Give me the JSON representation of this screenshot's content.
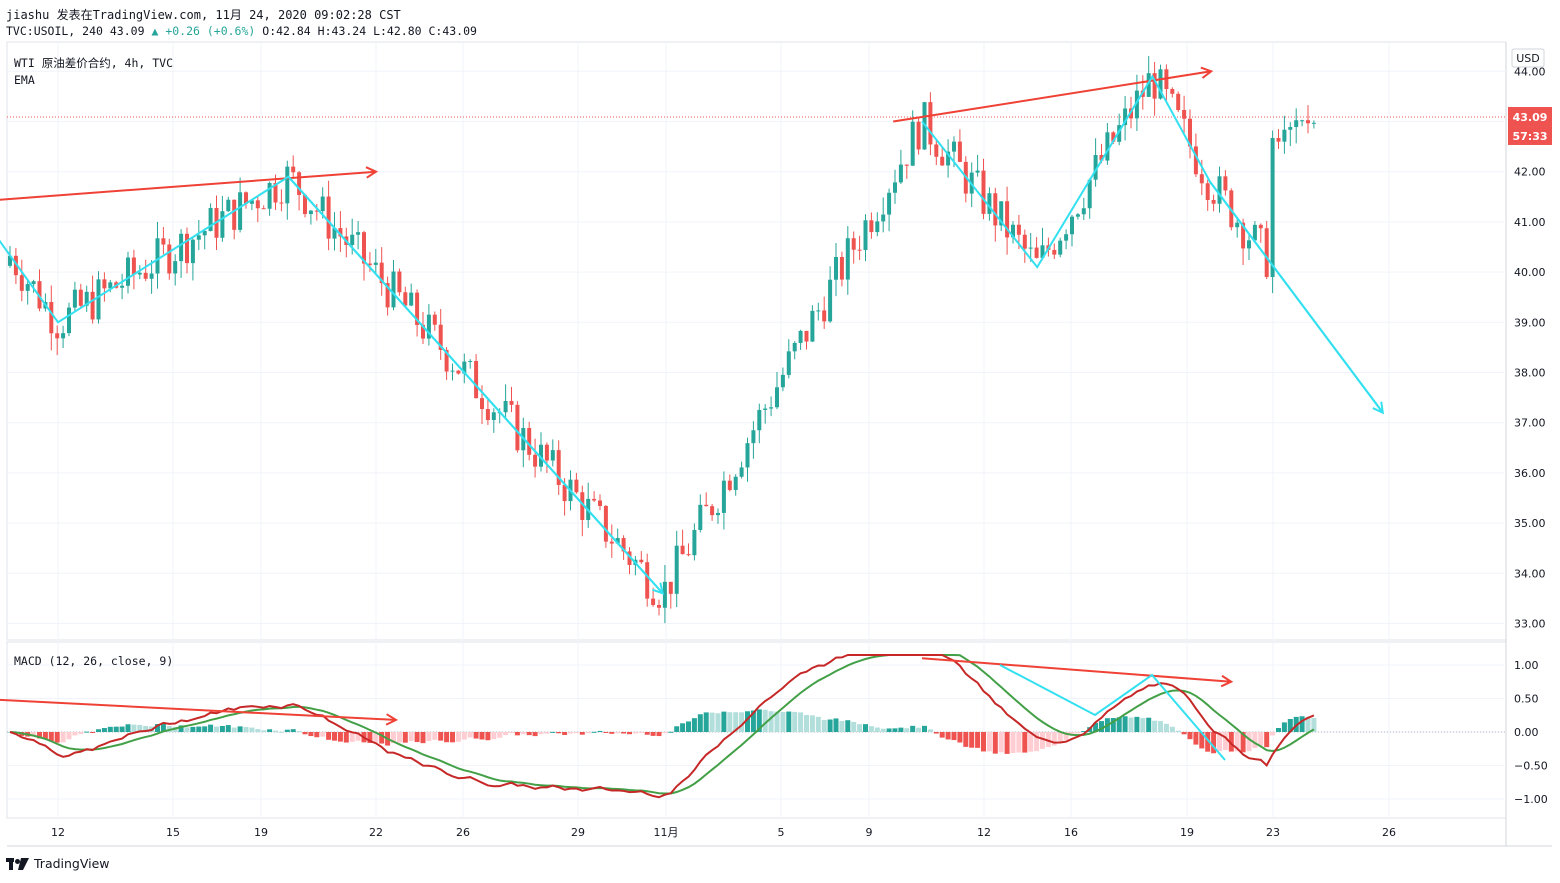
{
  "header": {
    "publisher": "jiashu 发表在TradingView.com, 11月 24, 2020 09:02:28 CST",
    "symbol": "TVC:USOIL, 240",
    "last": "43.09",
    "change_arrow": "▲",
    "change": "+0.26 (+0.6%)",
    "ohlc_o": "O:42.84",
    "ohlc_h": "H:43.24",
    "ohlc_l": "L:42.80",
    "ohlc_c": "C:43.09"
  },
  "legend": {
    "title": "WTI 原油差价合约, 4h, TVC",
    "ema": "EMA",
    "macd": "MACD (12, 26, close, 9)"
  },
  "footer": {
    "brand": "TradingView",
    "logo_icon": "tradingview-logo-icon"
  },
  "colors": {
    "up": "#26a69a",
    "down": "#ef5350",
    "annotation_red": "#ef4135",
    "annotation_cyan": "#33e0f0",
    "macd_line": "#c62828",
    "signal_line": "#43a047"
  },
  "chart_data": [
    {
      "type": "candlestick",
      "currency_badge": "USD",
      "last_price": "43.09",
      "countdown": "57:33",
      "ylim": [
        32.8,
        44.3
      ],
      "y_ticks": [
        "44.00",
        "43.00",
        "42.00",
        "41.00",
        "40.00",
        "39.00",
        "38.00",
        "37.00",
        "36.00",
        "35.00",
        "34.00",
        "33.00"
      ],
      "x_ticks": [
        "12",
        "15",
        "19",
        "22",
        "26",
        "29",
        "11月",
        "5",
        "9",
        "12",
        "16",
        "19",
        "23",
        "26"
      ],
      "grid": true,
      "swing_points": [
        {
          "date": "10-09",
          "price": 41.4
        },
        {
          "date": "10-12",
          "price": 39.0
        },
        {
          "date": "10-20",
          "price": 41.9
        },
        {
          "date": "11-02",
          "price": 33.6
        },
        {
          "date": "11-11",
          "price": 43.0
        },
        {
          "date": "11-15",
          "price": 40.1
        },
        {
          "date": "11-19",
          "price": 43.9
        },
        {
          "date": "11-21",
          "price": 41.8
        },
        {
          "date": "11-27",
          "price": 37.2
        }
      ],
      "trendlines": [
        {
          "color": "red",
          "from": {
            "date": "10-09",
            "price": 41.4
          },
          "to": {
            "date": "10-22",
            "price": 42.0
          }
        },
        {
          "color": "red",
          "from": {
            "date": "11-10",
            "price": 43.0
          },
          "to": {
            "date": "11-20",
            "price": 44.0
          }
        }
      ]
    },
    {
      "type": "macd",
      "params": "12, 26, close, 9",
      "ylim": [
        -1.25,
        1.25
      ],
      "y_ticks": [
        "1.00",
        "0.50",
        "0.00",
        "−0.50",
        "−1.00"
      ],
      "zero_line": true,
      "trendlines": [
        {
          "color": "red",
          "from": {
            "date": "10-09",
            "value": 0.5
          },
          "to": {
            "date": "10-22",
            "value": 0.18
          }
        },
        {
          "color": "red",
          "from": {
            "date": "11-11",
            "value": 1.1
          },
          "to": {
            "date": "11-20",
            "value": 0.75
          }
        }
      ]
    }
  ]
}
